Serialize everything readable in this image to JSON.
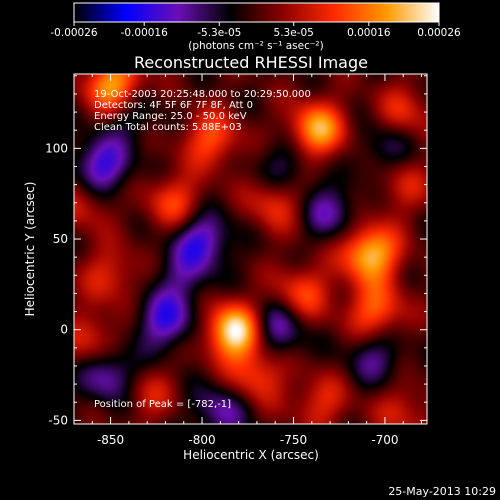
{
  "colorbar": {
    "ticks": [
      "-0.00026",
      "-0.00016",
      "-5.3e-05",
      "5.3e-05",
      "0.00016",
      "0.00026"
    ],
    "tick_values": [
      -0.00026,
      -0.00016,
      -5.3e-05,
      5.3e-05,
      0.00016,
      0.00026
    ],
    "range": [
      -0.00026,
      0.00026
    ],
    "units": "(photons cm⁻² s⁻¹ asec⁻²)",
    "stops": [
      "#000000",
      "#0000ff",
      "#6a0fb5",
      "#000000",
      "#8b0000",
      "#ff2a00",
      "#ff9a00",
      "#ffffff"
    ]
  },
  "chart_data": {
    "type": "heatmap",
    "title": "Reconstructed RHESSI Image",
    "xlabel": "Heliocentric X (arcsec)",
    "ylabel": "Heliocentric Y (arcsec)",
    "xlim": [
      -870,
      -677
    ],
    "ylim": [
      -52,
      141
    ],
    "xticks": [
      -850,
      -800,
      -750,
      -700
    ],
    "yticks": [
      -50,
      0,
      50,
      100
    ],
    "xtick_labels": [
      "-850",
      "-800",
      "-750",
      "-700"
    ],
    "ytick_labels": [
      "-50",
      "0",
      "50",
      "100"
    ],
    "info_lines": [
      "19-Oct-2003 20:25:48.000 to 20:29:50.000",
      "Detectors: 4F 5F 6F 7F 8F, Att 0",
      "Energy Range: 25.0 - 50.0 keV",
      "Clean    Total counts: 5.88E+03"
    ],
    "peak_label": "Position of Peak = [-782,-1]",
    "peak_position": [
      -782,
      -1
    ],
    "sources": [
      {
        "x": -782,
        "y": -1,
        "amp": 1.0
      },
      {
        "x": -708,
        "y": 42,
        "amp": 0.85
      },
      {
        "x": -737,
        "y": 110,
        "amp": 0.75
      },
      {
        "x": -848,
        "y": 134,
        "amp": 0.8
      },
      {
        "x": -705,
        "y": 10,
        "amp": 0.55
      },
      {
        "x": -795,
        "y": 105,
        "amp": 0.5
      },
      {
        "x": -815,
        "y": 70,
        "amp": 0.45
      },
      {
        "x": -760,
        "y": 70,
        "amp": 0.4
      },
      {
        "x": -745,
        "y": 20,
        "amp": 0.45
      },
      {
        "x": -850,
        "y": 30,
        "amp": 0.35
      },
      {
        "x": -860,
        "y": -5,
        "amp": 0.35
      },
      {
        "x": -735,
        "y": -40,
        "amp": 0.35
      },
      {
        "x": -690,
        "y": -45,
        "amp": 0.3
      },
      {
        "x": -830,
        "y": -35,
        "amp": 0.3
      },
      {
        "x": -690,
        "y": 80,
        "amp": 0.3
      },
      {
        "x": -690,
        "y": 120,
        "amp": 0.35
      },
      {
        "x": -865,
        "y": 70,
        "amp": 0.3
      },
      {
        "x": -770,
        "y": -25,
        "amp": 0.45
      },
      {
        "x": -820,
        "y": 5,
        "amp": -0.55
      },
      {
        "x": -855,
        "y": 90,
        "amp": -0.6
      },
      {
        "x": -800,
        "y": 50,
        "amp": -0.55
      },
      {
        "x": -760,
        "y": 0,
        "amp": -0.5
      },
      {
        "x": -850,
        "y": -25,
        "amp": -0.5
      },
      {
        "x": -790,
        "y": -45,
        "amp": -0.4
      },
      {
        "x": -730,
        "y": 65,
        "amp": -0.4
      },
      {
        "x": -840,
        "y": 120,
        "amp": -0.3
      },
      {
        "x": -700,
        "y": 100,
        "amp": -0.3
      },
      {
        "x": -755,
        "y": 90,
        "amp": -0.3
      },
      {
        "x": -810,
        "y": 30,
        "amp": -0.3
      },
      {
        "x": -705,
        "y": -15,
        "amp": -0.35
      }
    ]
  },
  "footer": {
    "timestamp": "25-May-2013 10:29"
  }
}
